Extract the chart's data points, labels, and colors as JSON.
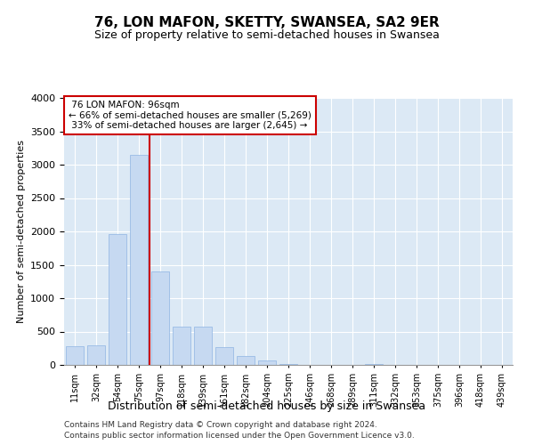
{
  "title": "76, LON MAFON, SKETTY, SWANSEA, SA2 9ER",
  "subtitle": "Size of property relative to semi-detached houses in Swansea",
  "xlabel": "Distribution of semi-detached houses by size in Swansea",
  "ylabel": "Number of semi-detached properties",
  "footnote1": "Contains HM Land Registry data © Crown copyright and database right 2024.",
  "footnote2": "Contains public sector information licensed under the Open Government Licence v3.0.",
  "property_label": "76 LON MAFON: 96sqm",
  "smaller_pct": "66% of semi-detached houses are smaller (5,269)",
  "larger_pct": "33% of semi-detached houses are larger (2,645)",
  "bar_color": "#c6d9f1",
  "bar_edge_color": "#8eb4e3",
  "marker_line_color": "#cc0000",
  "plot_bg_color": "#dce9f5",
  "categories": [
    "11sqm",
    "32sqm",
    "54sqm",
    "75sqm",
    "97sqm",
    "118sqm",
    "139sqm",
    "161sqm",
    "182sqm",
    "204sqm",
    "225sqm",
    "246sqm",
    "268sqm",
    "289sqm",
    "311sqm",
    "332sqm",
    "353sqm",
    "375sqm",
    "396sqm",
    "418sqm",
    "439sqm"
  ],
  "values": [
    280,
    290,
    1960,
    3150,
    1400,
    580,
    570,
    265,
    130,
    70,
    15,
    5,
    0,
    0,
    8,
    0,
    0,
    0,
    0,
    0,
    0
  ],
  "ylim": [
    0,
    4000
  ],
  "marker_bin_index": 4
}
